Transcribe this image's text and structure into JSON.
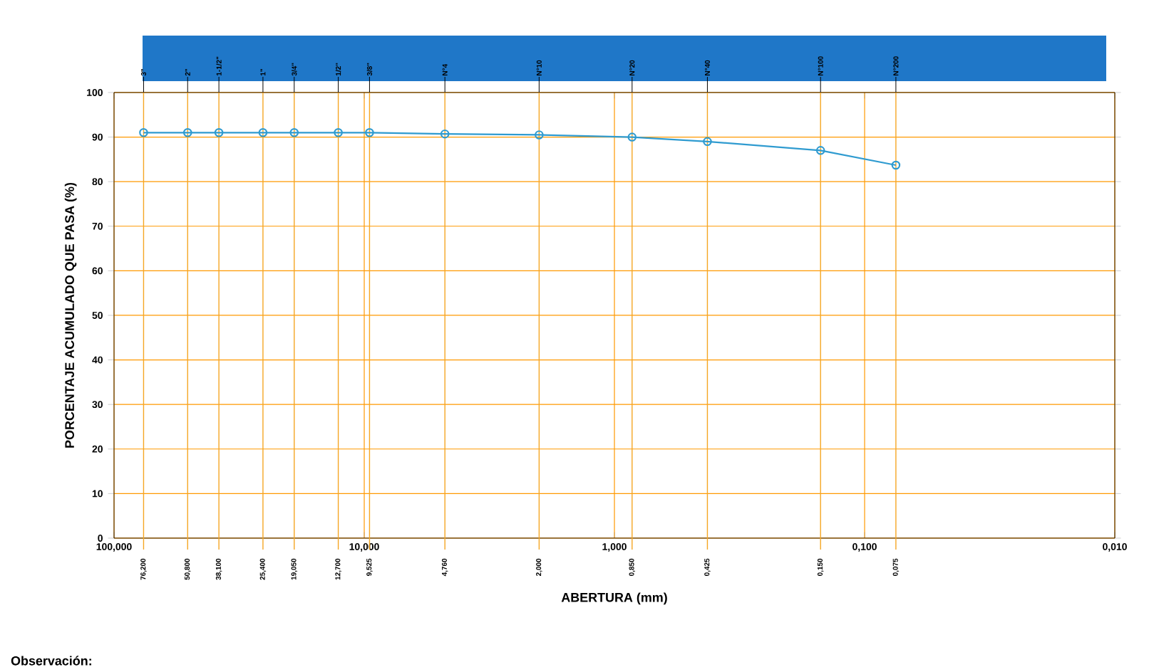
{
  "chart_data": {
    "type": "line",
    "xlabel": "ABERTURA (mm)",
    "ylabel": "PORCENTAJE ACUMULADO QUE PASA (%)",
    "log": "x",
    "grid": true,
    "marker": "circle",
    "line_style": "solid",
    "x": [
      76.2,
      50.8,
      38.1,
      25.4,
      19.05,
      12.7,
      9.525,
      4.76,
      2.0,
      0.85,
      0.425,
      0.15,
      0.075
    ],
    "series": [
      {
        "color": "#2f9bd0",
        "values": [
          91,
          91,
          91,
          91,
          91,
          91,
          91,
          90.7,
          90.5,
          90,
          89,
          87,
          83.7
        ]
      }
    ],
    "xlim": [
      100,
      0.01
    ],
    "ylim": [
      0,
      100
    ],
    "yticks": [
      0,
      10,
      20,
      30,
      40,
      50,
      60,
      70,
      80,
      90,
      100
    ],
    "xticks": [
      {
        "value": 100,
        "label": "100,000"
      },
      {
        "value": 10,
        "label": "10,000"
      },
      {
        "value": 1,
        "label": "1,000"
      },
      {
        "value": 0.1,
        "label": "0,100"
      },
      {
        "value": 0.01,
        "label": "0,010"
      }
    ],
    "ref_lines": [
      {
        "axis": "x",
        "value": 76.2,
        "label": "76,200",
        "color": "#f5a623"
      },
      {
        "axis": "x",
        "value": 50.8,
        "label": "50,800",
        "color": "#f5a623"
      },
      {
        "axis": "x",
        "value": 38.1,
        "label": "38,100",
        "color": "#f5a623"
      },
      {
        "axis": "x",
        "value": 25.4,
        "label": "25,400",
        "color": "#f5a623"
      },
      {
        "axis": "x",
        "value": 19.05,
        "label": "19,050",
        "color": "#f5a623"
      },
      {
        "axis": "x",
        "value": 12.7,
        "label": "12,700",
        "color": "#f5a623"
      },
      {
        "axis": "x",
        "value": 9.525,
        "label": "9,525",
        "color": "#f5a623"
      },
      {
        "axis": "x",
        "value": 4.76,
        "label": "4,760",
        "color": "#f5a623"
      },
      {
        "axis": "x",
        "value": 2.0,
        "label": "2,000",
        "color": "#f5a623"
      },
      {
        "axis": "x",
        "value": 0.85,
        "label": "0,850",
        "color": "#f5a623"
      },
      {
        "axis": "x",
        "value": 0.425,
        "label": "0,425",
        "color": "#f5a623"
      },
      {
        "axis": "x",
        "value": 0.15,
        "label": "0,150",
        "color": "#f5a623"
      },
      {
        "axis": "x",
        "value": 0.075,
        "label": "0,075",
        "color": "#f5a623"
      }
    ],
    "annotations": [
      {
        "text": "3\"",
        "x": 76.2,
        "y": 100
      },
      {
        "text": "2\"",
        "x": 50.8,
        "y": 100
      },
      {
        "text": "1-1/2\"",
        "x": 38.1,
        "y": 100
      },
      {
        "text": "1\"",
        "x": 25.4,
        "y": 100
      },
      {
        "text": "3/4\"",
        "x": 19.05,
        "y": 100
      },
      {
        "text": "1/2\"",
        "x": 12.7,
        "y": 100
      },
      {
        "text": "3/8\"",
        "x": 9.525,
        "y": 100
      },
      {
        "text": "N°4",
        "x": 4.76,
        "y": 100
      },
      {
        "text": "N°10",
        "x": 2.0,
        "y": 100
      },
      {
        "text": "N°20",
        "x": 0.85,
        "y": 100
      },
      {
        "text": "N°40",
        "x": 0.425,
        "y": 100
      },
      {
        "text": "N°100",
        "x": 0.15,
        "y": 100
      },
      {
        "text": "N°200",
        "x": 0.075,
        "y": 100
      },
      "Observación:"
    ]
  }
}
